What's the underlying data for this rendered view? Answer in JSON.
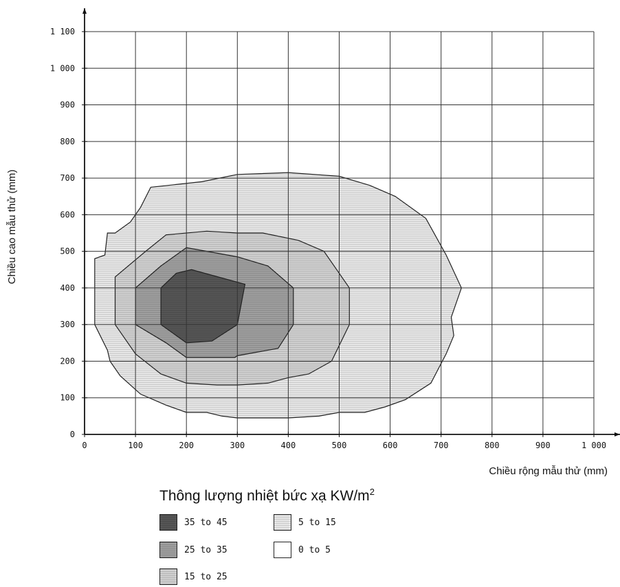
{
  "chart_data": {
    "type": "contour",
    "xlabel": "Chiều rộng mẫu thử (mm)",
    "ylabel": "Chiều cao mẫu thử (mm)",
    "xlim": [
      0,
      1000
    ],
    "ylim": [
      0,
      1100
    ],
    "x_ticks": [
      "0",
      "100",
      "200",
      "300",
      "400",
      "500",
      "600",
      "700",
      "800",
      "900",
      "1 000"
    ],
    "y_ticks": [
      "0",
      "100",
      "200",
      "300",
      "400",
      "500",
      "600",
      "700",
      "800",
      "900",
      "1 000",
      "1 100"
    ],
    "grid": true,
    "legend": {
      "title_main": "Thông lượng nhiệt bức xạ KW/m",
      "title_sup": "2",
      "position": "bottom"
    },
    "series": [
      {
        "name": "5 to 15",
        "fill": "#e6e6e6",
        "polygon": [
          [
            45,
            550
          ],
          [
            40,
            490
          ],
          [
            20,
            480
          ],
          [
            20,
            300
          ],
          [
            45,
            230
          ],
          [
            50,
            200
          ],
          [
            70,
            160
          ],
          [
            110,
            110
          ],
          [
            160,
            80
          ],
          [
            200,
            60
          ],
          [
            240,
            60
          ],
          [
            270,
            50
          ],
          [
            300,
            45
          ],
          [
            400,
            45
          ],
          [
            460,
            50
          ],
          [
            500,
            60
          ],
          [
            550,
            60
          ],
          [
            590,
            75
          ],
          [
            630,
            95
          ],
          [
            680,
            140
          ],
          [
            710,
            220
          ],
          [
            725,
            270
          ],
          [
            720,
            320
          ],
          [
            740,
            400
          ],
          [
            710,
            490
          ],
          [
            670,
            590
          ],
          [
            610,
            650
          ],
          [
            560,
            680
          ],
          [
            500,
            705
          ],
          [
            400,
            715
          ],
          [
            300,
            710
          ],
          [
            230,
            690
          ],
          [
            130,
            675
          ],
          [
            110,
            620
          ],
          [
            90,
            580
          ],
          [
            60,
            550
          ]
        ]
      },
      {
        "name": "15 to 25",
        "fill": "#cfcfcf",
        "polygon": [
          [
            60,
            430
          ],
          [
            60,
            300
          ],
          [
            100,
            220
          ],
          [
            150,
            165
          ],
          [
            200,
            140
          ],
          [
            260,
            135
          ],
          [
            300,
            135
          ],
          [
            360,
            140
          ],
          [
            400,
            155
          ],
          [
            440,
            165
          ],
          [
            485,
            200
          ],
          [
            520,
            300
          ],
          [
            520,
            400
          ],
          [
            470,
            500
          ],
          [
            420,
            530
          ],
          [
            350,
            550
          ],
          [
            300,
            550
          ],
          [
            240,
            555
          ],
          [
            160,
            545
          ],
          [
            120,
            500
          ]
        ]
      },
      {
        "name": "25 to 35",
        "fill": "#9e9e9e",
        "polygon": [
          [
            100,
            400
          ],
          [
            100,
            300
          ],
          [
            160,
            250
          ],
          [
            200,
            210
          ],
          [
            250,
            210
          ],
          [
            295,
            210
          ],
          [
            300,
            215
          ],
          [
            380,
            235
          ],
          [
            410,
            300
          ],
          [
            410,
            400
          ],
          [
            360,
            460
          ],
          [
            300,
            485
          ],
          [
            200,
            510
          ],
          [
            150,
            460
          ]
        ]
      },
      {
        "name": "35 to 45",
        "fill": "#555555",
        "polygon": [
          [
            150,
            400
          ],
          [
            150,
            300
          ],
          [
            200,
            250
          ],
          [
            250,
            255
          ],
          [
            300,
            300
          ],
          [
            315,
            410
          ],
          [
            210,
            450
          ],
          [
            180,
            440
          ]
        ]
      }
    ],
    "legend_items": [
      {
        "label": "35 to 45",
        "fill": "#555555"
      },
      {
        "label": "5 to 15",
        "fill": "#e6e6e6"
      },
      {
        "label": "25 to 35",
        "fill": "#9e9e9e"
      },
      {
        "label": "0 to 5",
        "fill": "#ffffff"
      },
      {
        "label": "15 to 25",
        "fill": "#cfcfcf"
      }
    ]
  }
}
